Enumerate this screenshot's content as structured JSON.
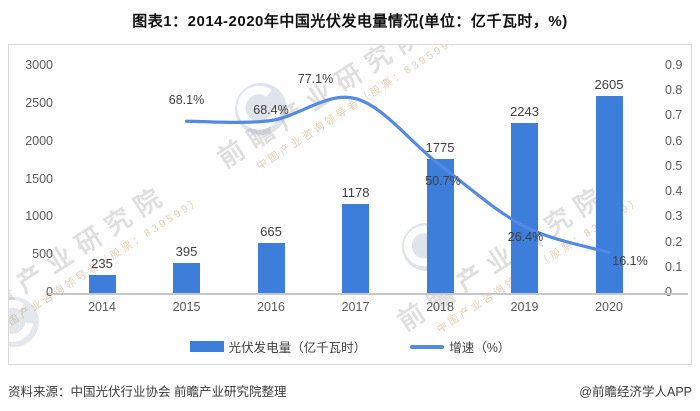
{
  "title": "图表1：2014-2020年中国光伏发电量情况(单位：亿千瓦时，%)",
  "source_note": "资料来源：中国光伏行业协会 前瞻产业研究院整理",
  "credit": "@前瞻经济学人APP",
  "watermark": {
    "brand": "前瞻产业研究院",
    "tagline": "中国产业咨询领导者（股票：839599）"
  },
  "colors": {
    "bar": "#3d7edb",
    "line": "#5589e6",
    "axis_text": "#595959",
    "label_text": "#3f3f3f"
  },
  "legend": [
    {
      "label": "光伏发电量（亿千瓦时）",
      "type": "bar",
      "color": "#3d7edb"
    },
    {
      "label": "增速（%）",
      "type": "line",
      "color": "#5589e6"
    }
  ],
  "chart_data": {
    "type": "bar",
    "subtype": "bar+smooth-line, dual axis",
    "title": "图表1：2014-2020年中国光伏发电量情况(单位：亿千瓦时，%)",
    "categories": [
      "2014",
      "2015",
      "2016",
      "2017",
      "2018",
      "2019",
      "2020"
    ],
    "series": [
      {
        "name": "光伏发电量（亿千瓦时）",
        "type": "bar",
        "axis": "left",
        "color": "#3d7edb",
        "values": [
          235,
          395,
          665,
          1178,
          1775,
          2243,
          2605
        ],
        "value_labels": [
          "235",
          "395",
          "665",
          "1178",
          "1775",
          "2243",
          "2605"
        ]
      },
      {
        "name": "增速（%）",
        "type": "line",
        "axis": "right",
        "color": "#5589e6",
        "smooth": true,
        "values": [
          null,
          0.681,
          0.684,
          0.771,
          0.507,
          0.264,
          0.161
        ],
        "value_labels": [
          null,
          "68.1%",
          "68.4%",
          "77.1%",
          "50.7%",
          "26.4%",
          "16.1%"
        ]
      }
    ],
    "left_axis": {
      "min": 0,
      "max": 3000,
      "step": 500,
      "ticks": [
        "0",
        "500",
        "1000",
        "1500",
        "2000",
        "2500",
        "3000"
      ]
    },
    "right_axis": {
      "min": 0,
      "max": 0.9,
      "step": 0.1,
      "ticks": [
        "0",
        "0.1",
        "0.2",
        "0.3",
        "0.4",
        "0.5",
        "0.6",
        "0.7",
        "0.8",
        "0.9"
      ]
    },
    "grid": false,
    "legend_position": "bottom"
  }
}
